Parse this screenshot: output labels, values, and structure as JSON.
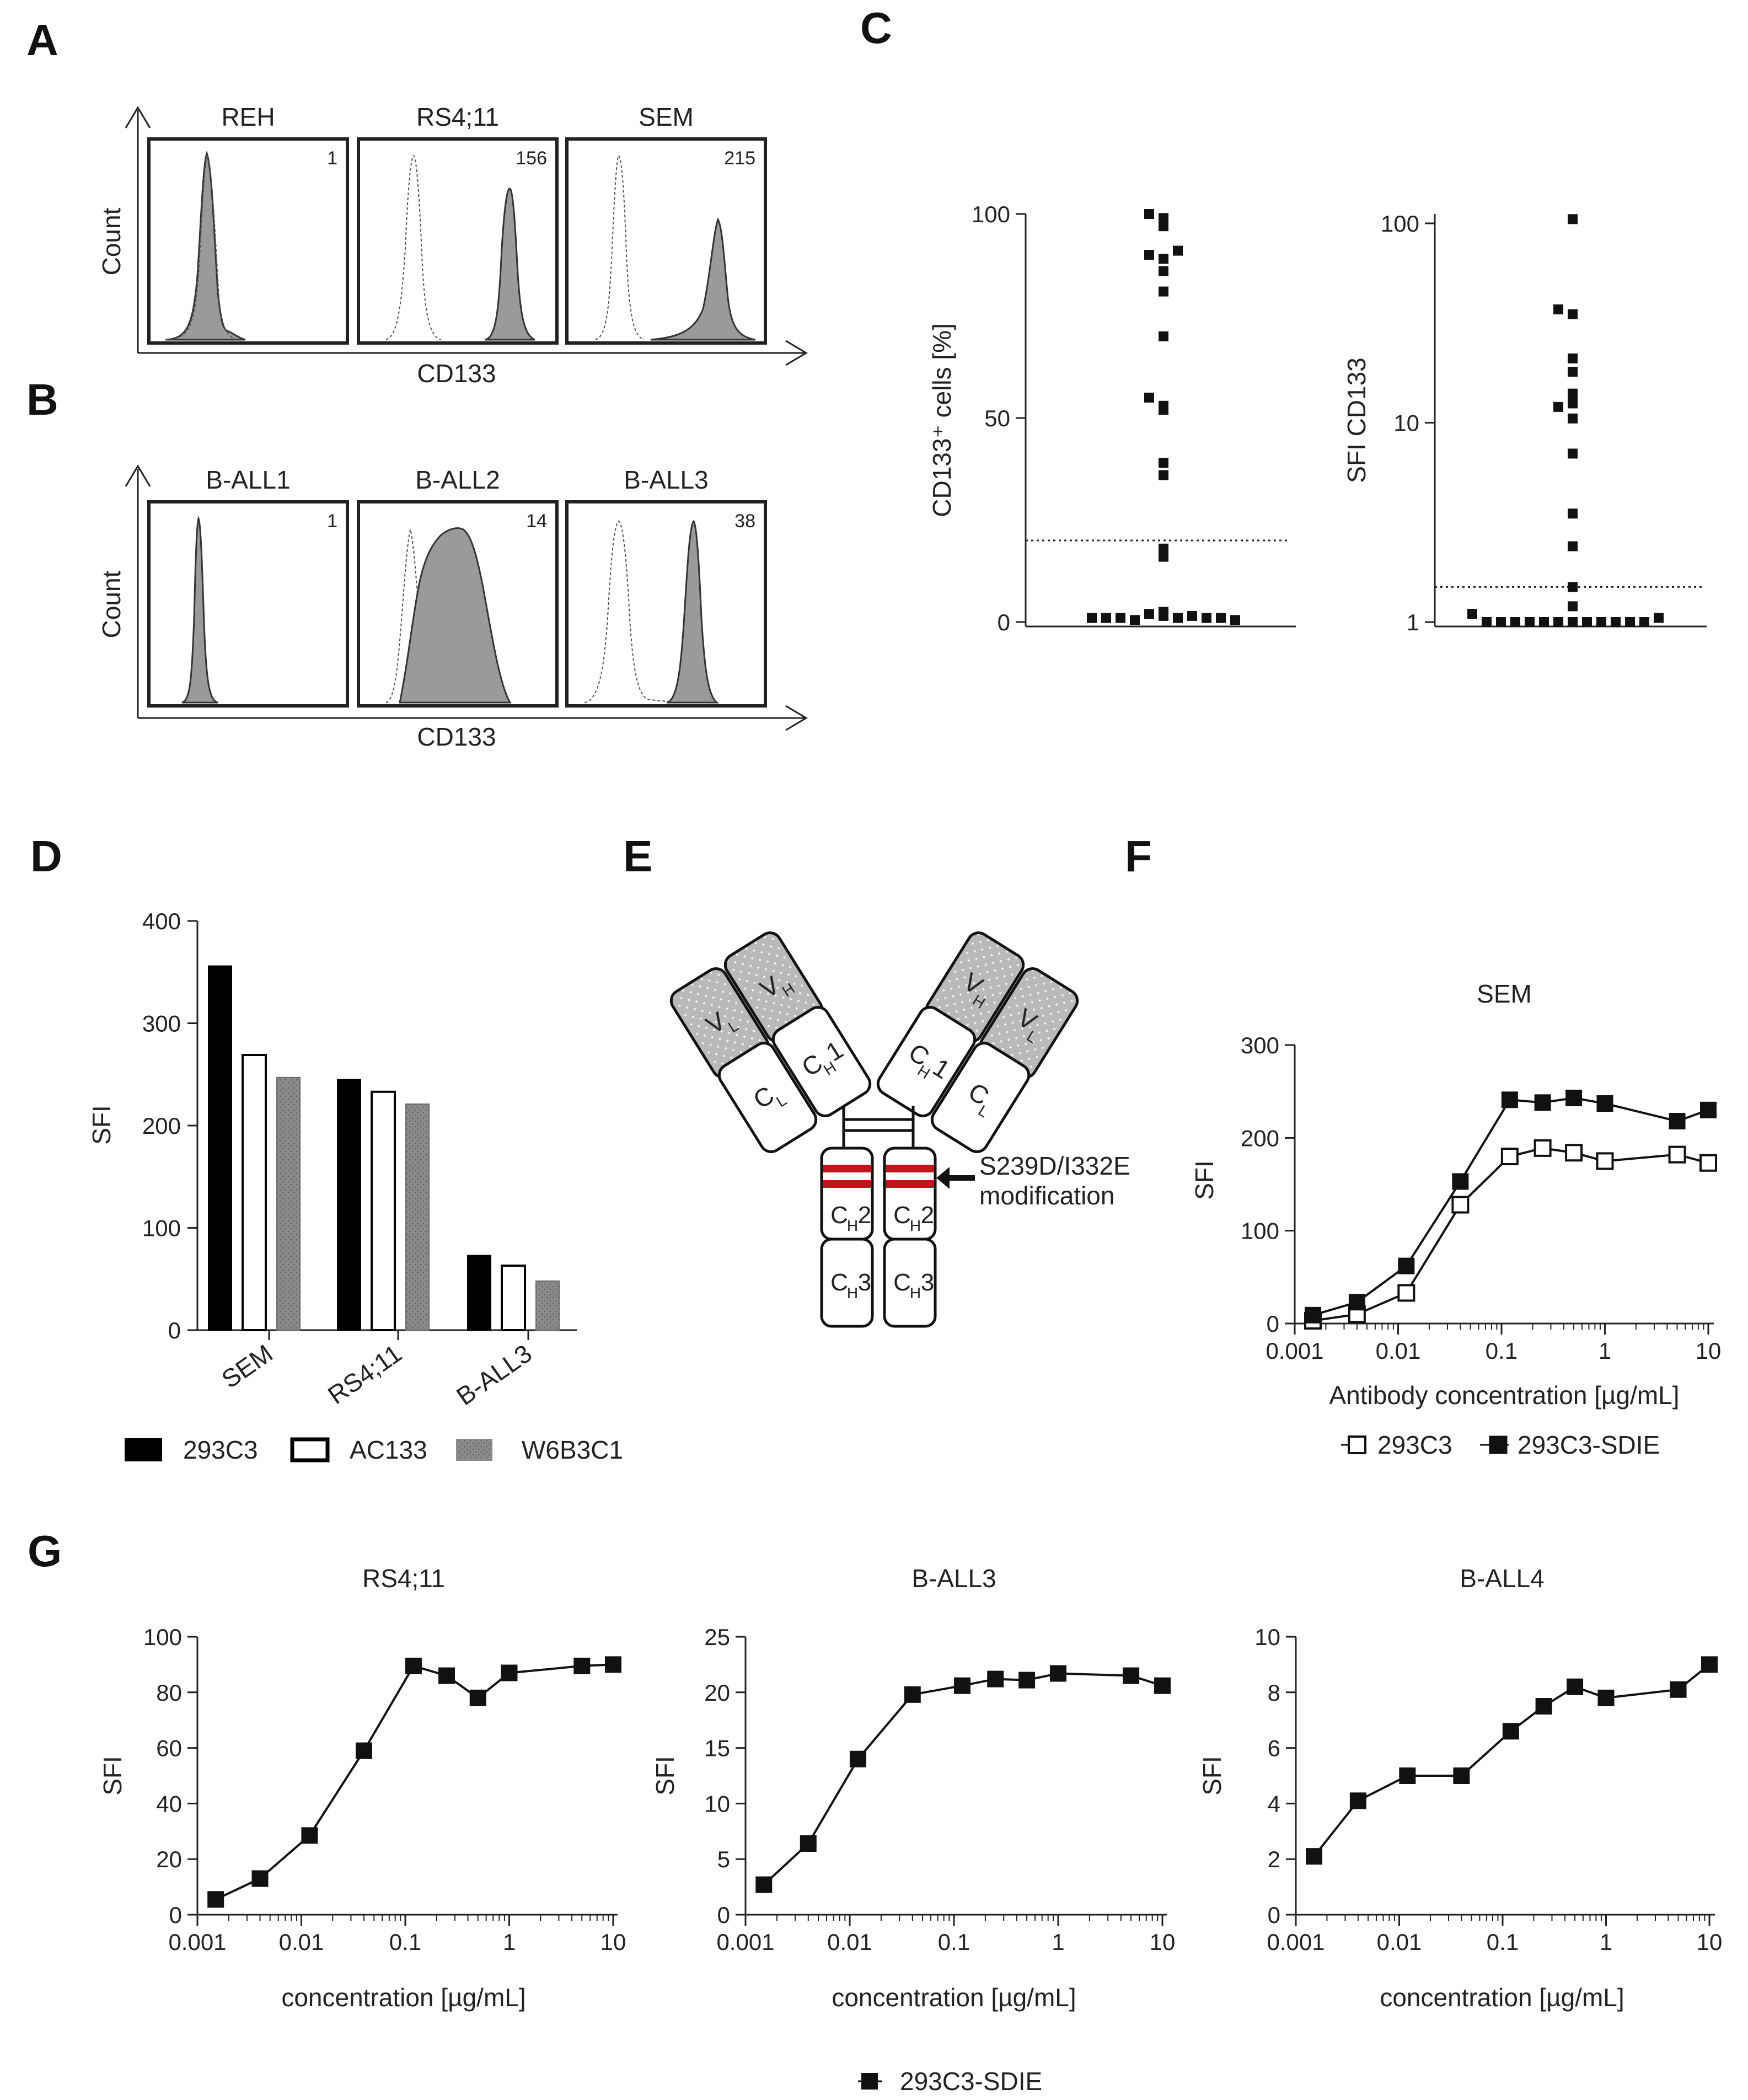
{
  "panels": {
    "A": {
      "label": "A",
      "y_label": "Count",
      "x_label": "CD133",
      "histograms": [
        {
          "title": "REH",
          "value": "1",
          "peak": "low"
        },
        {
          "title": "RS4;11",
          "value": "156",
          "peak": "high"
        },
        {
          "title": "SEM",
          "value": "215",
          "peak": "high-broad"
        }
      ]
    },
    "B": {
      "label": "B",
      "y_label": "Count",
      "x_label": "CD133",
      "histograms": [
        {
          "title": "B-ALL1",
          "value": "1",
          "peak": "low"
        },
        {
          "title": "B-ALL2",
          "value": "14",
          "peak": "mid-broad"
        },
        {
          "title": "B-ALL3",
          "value": "38",
          "peak": "high"
        }
      ]
    },
    "E": {
      "label": "E",
      "regions": {
        "VL": "V",
        "VL_sub": "L",
        "VH": "V",
        "VH_sub": "H",
        "CL": "C",
        "CL_sub": "L",
        "CH1": "C",
        "CH1_sub": "H",
        "CH1_num": "1",
        "CH2": "C",
        "CH2_sub": "H",
        "CH2_num": "2",
        "CH3": "C",
        "CH3_sub": "H",
        "CH3_num": "3"
      },
      "annotation_line1": "S239D/I332E",
      "annotation_line2": "modification",
      "annotation_color": "#c0151b"
    }
  },
  "chart_data": [
    {
      "id": "C-left",
      "panel": "C",
      "type": "scatter",
      "ylabel": "CD133⁺ cells [%]",
      "ylim": [
        0,
        100
      ],
      "yticks": [
        "0",
        "50",
        "100"
      ],
      "threshold": 20,
      "points": [
        1.5,
        2.5,
        2,
        1,
        0.5,
        1.5,
        1,
        1,
        1,
        1,
        1,
        0.5,
        16,
        18,
        36,
        39,
        53,
        55,
        52,
        70,
        81,
        86,
        89,
        90,
        91,
        97,
        99,
        100
      ]
    },
    {
      "id": "C-right",
      "panel": "C",
      "type": "scatter",
      "ylabel": "SFI CD133",
      "scale": "log",
      "ylim": [
        1,
        100
      ],
      "yticks": [
        "1",
        "10",
        "100"
      ],
      "threshold": 1.5,
      "points": [
        1,
        1,
        1,
        1,
        1,
        1,
        1,
        1,
        1,
        1,
        1,
        1,
        1.05,
        1.1,
        1.2,
        1.5,
        2.4,
        3.5,
        7,
        10.5,
        12,
        12.5,
        14,
        18,
        21,
        35,
        37,
        105
      ]
    },
    {
      "id": "D",
      "panel": "D",
      "type": "bar",
      "ylabel": "SFI",
      "ylim": [
        0,
        400
      ],
      "yticks": [
        "0",
        "100",
        "200",
        "300",
        "400"
      ],
      "categories": [
        "SEM",
        "RS4;11",
        "B-ALL3"
      ],
      "series": [
        {
          "name": "293C3",
          "values": [
            356,
            245,
            73
          ],
          "color": "#000000",
          "pattern": "solid"
        },
        {
          "name": "AC133",
          "values": [
            269,
            233,
            63
          ],
          "color": "#ffffff",
          "pattern": "outline"
        },
        {
          "name": "W6B3C1",
          "values": [
            247,
            221,
            48
          ],
          "color": "#8a8a8a",
          "pattern": "dots"
        }
      ]
    },
    {
      "id": "F",
      "panel": "F",
      "type": "line",
      "title": "SEM",
      "xlabel": "Antibody concentration [µg/mL]",
      "ylabel": "SFI",
      "xscale": "log",
      "xlim": [
        0.001,
        10
      ],
      "xticks": [
        "0.001",
        "0.01",
        "0.1",
        "1",
        "10"
      ],
      "ylim": [
        0,
        300
      ],
      "yticks": [
        "0",
        "100",
        "200",
        "300"
      ],
      "x": [
        0.0015,
        0.004,
        0.012,
        0.04,
        0.12,
        0.25,
        0.5,
        1,
        5,
        10
      ],
      "series": [
        {
          "name": "293C3",
          "marker": "open-square",
          "values": [
            3,
            10,
            33,
            128,
            180,
            189,
            184,
            175,
            182,
            173
          ]
        },
        {
          "name": "293C3-SDIE",
          "marker": "filled-square",
          "values": [
            9,
            23,
            62,
            153,
            241,
            238,
            243,
            237,
            218,
            230
          ]
        }
      ]
    },
    {
      "id": "G1",
      "panel": "G",
      "type": "line",
      "title": "RS4;11",
      "xlabel": "concentration [µg/mL]",
      "ylabel": "SFI",
      "xscale": "log",
      "xlim": [
        0.001,
        10
      ],
      "xticks": [
        "0.001",
        "0.01",
        "0.1",
        "1",
        "10"
      ],
      "ylim": [
        0,
        100
      ],
      "yticks": [
        "0",
        "20",
        "40",
        "60",
        "80",
        "100"
      ],
      "x": [
        0.0015,
        0.004,
        0.012,
        0.04,
        0.12,
        0.25,
        0.5,
        1,
        5,
        10
      ],
      "series": [
        {
          "name": "293C3-SDIE",
          "marker": "filled-square",
          "values": [
            5.5,
            13,
            28.5,
            59,
            89.5,
            86,
            78,
            87,
            89.5,
            90
          ]
        }
      ]
    },
    {
      "id": "G2",
      "panel": "G",
      "type": "line",
      "title": "B-ALL3",
      "xlabel": "concentration [µg/mL]",
      "ylabel": "SFI",
      "xscale": "log",
      "xlim": [
        0.001,
        10
      ],
      "xticks": [
        "0.001",
        "0.01",
        "0.1",
        "1",
        "10"
      ],
      "ylim": [
        0,
        25
      ],
      "yticks": [
        "0",
        "5",
        "10",
        "15",
        "20",
        "25"
      ],
      "x": [
        0.0015,
        0.004,
        0.012,
        0.04,
        0.12,
        0.25,
        0.5,
        1,
        5,
        10
      ],
      "series": [
        {
          "name": "293C3-SDIE",
          "marker": "filled-square",
          "values": [
            2.7,
            6.4,
            14,
            19.8,
            20.6,
            21.2,
            21.1,
            21.7,
            21.5,
            20.6
          ]
        }
      ]
    },
    {
      "id": "G3",
      "panel": "G",
      "type": "line",
      "title": "B-ALL4",
      "xlabel": "concentration [µg/mL]",
      "ylabel": "SFI",
      "xscale": "log",
      "xlim": [
        0.001,
        10
      ],
      "xticks": [
        "0.001",
        "0.01",
        "0.1",
        "1",
        "10"
      ],
      "ylim": [
        0,
        10
      ],
      "yticks": [
        "0",
        "2",
        "4",
        "6",
        "8",
        "10"
      ],
      "x": [
        0.0015,
        0.004,
        0.012,
        0.04,
        0.12,
        0.25,
        0.5,
        1,
        5,
        10
      ],
      "series": [
        {
          "name": "293C3-SDIE",
          "marker": "filled-square",
          "values": [
            2.1,
            4.1,
            5,
            5,
            6.6,
            7.5,
            8.2,
            7.8,
            8.1,
            9.0
          ]
        }
      ]
    }
  ],
  "legend_G": "293C3-SDIE"
}
